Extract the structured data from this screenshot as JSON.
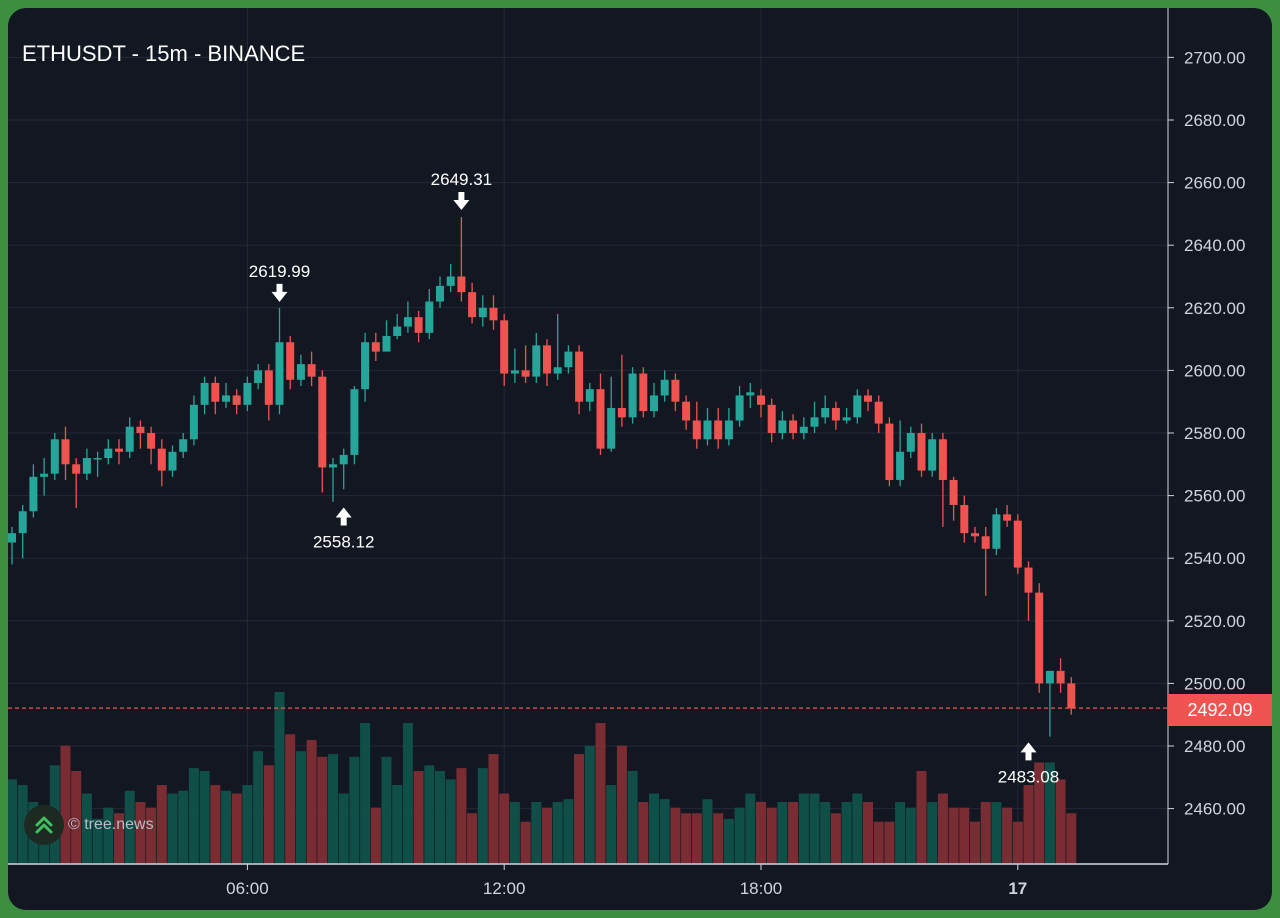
{
  "title": "ETHUSDT - 15m - BINANCE",
  "watermark": "© tree.news",
  "colors": {
    "bg": "#131722",
    "grid": "#232836",
    "up": "#26a69a",
    "down": "#ef5350",
    "up_volume": "#0f4f47",
    "down_volume": "#7a2c33",
    "axis_text": "#d1d4dc",
    "current_price": "#f05350"
  },
  "current_price": "2492.09",
  "chart_data": {
    "type": "candlestick",
    "symbol": "ETHUSDT",
    "interval": "15m",
    "exchange": "BINANCE",
    "y_ticks": [
      "2700.00",
      "2680.00",
      "2660.00",
      "2640.00",
      "2620.00",
      "2600.00",
      "2580.00",
      "2560.00",
      "2540.00",
      "2520.00",
      "2500.00",
      "2480.00",
      "2460.00"
    ],
    "ylim": [
      2440,
      2710
    ],
    "x_ticks": [
      {
        "label": "06:00",
        "index": 22,
        "bold": false
      },
      {
        "label": "12:00",
        "index": 46,
        "bold": false
      },
      {
        "label": "18:00",
        "index": 70,
        "bold": false
      },
      {
        "label": "17",
        "index": 94,
        "bold": true
      }
    ],
    "annotations": [
      {
        "label": "2619.99",
        "index": 25,
        "price": 2619.99,
        "dir": "down"
      },
      {
        "label": "2558.12",
        "index": 31,
        "price": 2558.12,
        "dir": "up"
      },
      {
        "label": "2649.31",
        "index": 42,
        "price": 2649.31,
        "dir": "down"
      },
      {
        "label": "2483.08",
        "index": 95,
        "price": 2483.08,
        "dir": "up"
      }
    ],
    "candles": [
      [
        2545,
        2548,
        2538,
        2550,
        30
      ],
      [
        2548,
        2555,
        2540,
        2557,
        28
      ],
      [
        2555,
        2566,
        2553,
        2570,
        22
      ],
      [
        2566,
        2567,
        2560,
        2572,
        18
      ],
      [
        2567,
        2578,
        2565,
        2580,
        35
      ],
      [
        2578,
        2570,
        2565,
        2582,
        42
      ],
      [
        2570,
        2567,
        2556,
        2572,
        33
      ],
      [
        2567,
        2572,
        2565,
        2575,
        25
      ],
      [
        2572,
        2572,
        2566,
        2574,
        16
      ],
      [
        2572,
        2575,
        2570,
        2578,
        20
      ],
      [
        2575,
        2574,
        2570,
        2578,
        18
      ],
      [
        2574,
        2582,
        2572,
        2585,
        26
      ],
      [
        2582,
        2580,
        2575,
        2584,
        22
      ],
      [
        2580,
        2575,
        2570,
        2582,
        20
      ],
      [
        2575,
        2568,
        2563,
        2578,
        28
      ],
      [
        2568,
        2574,
        2566,
        2576,
        25
      ],
      [
        2574,
        2578,
        2572,
        2580,
        26
      ],
      [
        2578,
        2589,
        2576,
        2592,
        34
      ],
      [
        2589,
        2596,
        2586,
        2598,
        33
      ],
      [
        2596,
        2590,
        2586,
        2598,
        28
      ],
      [
        2590,
        2592,
        2588,
        2596,
        26
      ],
      [
        2592,
        2589,
        2586,
        2594,
        25
      ],
      [
        2589,
        2596,
        2587,
        2598,
        28
      ],
      [
        2596,
        2600,
        2594,
        2602,
        40
      ],
      [
        2600,
        2589,
        2584,
        2602,
        35
      ],
      [
        2589,
        2609,
        2586,
        2620,
        61
      ],
      [
        2609,
        2597,
        2594,
        2611,
        46
      ],
      [
        2597,
        2602,
        2595,
        2605,
        40
      ],
      [
        2602,
        2598,
        2595,
        2606,
        44
      ],
      [
        2598,
        2569,
        2561,
        2600,
        38
      ],
      [
        2569,
        2570,
        2558,
        2572,
        39
      ],
      [
        2570,
        2573,
        2562,
        2575,
        25
      ],
      [
        2573,
        2594,
        2570,
        2595,
        38
      ],
      [
        2594,
        2609,
        2590,
        2612,
        50
      ],
      [
        2609,
        2606,
        2603,
        2612,
        20
      ],
      [
        2606,
        2611,
        2608,
        2616,
        38
      ],
      [
        2611,
        2614,
        2610,
        2618,
        28
      ],
      [
        2614,
        2617,
        2612,
        2622,
        50
      ],
      [
        2617,
        2612,
        2609,
        2619,
        33
      ],
      [
        2612,
        2622,
        2610,
        2626,
        35
      ],
      [
        2622,
        2627,
        2620,
        2630,
        33
      ],
      [
        2627,
        2630,
        2625,
        2634,
        30
      ],
      [
        2630,
        2625,
        2622,
        2649,
        34
      ],
      [
        2625,
        2617,
        2615,
        2628,
        18
      ],
      [
        2617,
        2620,
        2614,
        2624,
        34
      ],
      [
        2620,
        2616,
        2613,
        2624,
        39
      ],
      [
        2616,
        2599,
        2595,
        2618,
        25
      ],
      [
        2599,
        2600,
        2596,
        2607,
        22
      ],
      [
        2600,
        2598,
        2596,
        2608,
        15
      ],
      [
        2598,
        2608,
        2596,
        2612,
        22
      ],
      [
        2608,
        2599,
        2595,
        2610,
        20
      ],
      [
        2599,
        2601,
        2597,
        2618,
        22
      ],
      [
        2601,
        2606,
        2599,
        2608,
        23
      ],
      [
        2606,
        2590,
        2586,
        2608,
        39
      ],
      [
        2590,
        2594,
        2587,
        2596,
        42
      ],
      [
        2594,
        2575,
        2573,
        2599,
        50
      ],
      [
        2575,
        2588,
        2574,
        2598,
        28
      ],
      [
        2588,
        2585,
        2582,
        2605,
        42
      ],
      [
        2585,
        2599,
        2583,
        2601,
        33
      ],
      [
        2599,
        2587,
        2585,
        2601,
        22
      ],
      [
        2587,
        2592,
        2585,
        2596,
        25
      ],
      [
        2592,
        2597,
        2590,
        2600,
        23
      ],
      [
        2597,
        2590,
        2587,
        2599,
        20
      ],
      [
        2590,
        2584,
        2581,
        2592,
        18
      ],
      [
        2584,
        2578,
        2575,
        2590,
        18
      ],
      [
        2578,
        2584,
        2576,
        2588,
        23
      ],
      [
        2584,
        2578,
        2575,
        2588,
        18
      ],
      [
        2578,
        2584,
        2576,
        2588,
        16
      ],
      [
        2584,
        2592,
        2582,
        2595,
        20
      ],
      [
        2592,
        2593,
        2588,
        2596,
        25
      ],
      [
        2592,
        2589,
        2585,
        2594,
        22
      ],
      [
        2589,
        2580,
        2577,
        2591,
        20
      ],
      [
        2580,
        2584,
        2578,
        2587,
        22
      ],
      [
        2584,
        2580,
        2578,
        2586,
        22
      ],
      [
        2580,
        2582,
        2578,
        2585,
        25
      ],
      [
        2582,
        2585,
        2580,
        2590,
        25
      ],
      [
        2585,
        2588,
        2583,
        2592,
        22
      ],
      [
        2588,
        2584,
        2581,
        2590,
        18
      ],
      [
        2584,
        2585,
        2583,
        2588,
        22
      ],
      [
        2585,
        2592,
        2583,
        2594,
        25
      ],
      [
        2592,
        2590,
        2587,
        2594,
        22
      ],
      [
        2590,
        2583,
        2580,
        2592,
        15
      ],
      [
        2583,
        2565,
        2563,
        2585,
        15
      ],
      [
        2565,
        2574,
        2563,
        2584,
        22
      ],
      [
        2574,
        2580,
        2572,
        2582,
        20
      ],
      [
        2580,
        2568,
        2566,
        2583,
        33
      ],
      [
        2568,
        2578,
        2566,
        2580,
        22
      ],
      [
        2578,
        2565,
        2550,
        2580,
        25
      ],
      [
        2565,
        2557,
        2552,
        2566,
        20
      ],
      [
        2557,
        2548,
        2545,
        2560,
        20
      ],
      [
        2548,
        2547,
        2545,
        2550,
        15
      ],
      [
        2547,
        2543,
        2528,
        2550,
        22
      ],
      [
        2543,
        2554,
        2541,
        2556,
        22
      ],
      [
        2554,
        2552,
        2550,
        2557,
        20
      ],
      [
        2552,
        2537,
        2535,
        2554,
        15
      ],
      [
        2537,
        2529,
        2520,
        2539,
        28
      ],
      [
        2529,
        2500,
        2497,
        2532,
        36
      ],
      [
        2500,
        2504,
        2483,
        2504,
        36
      ],
      [
        2504,
        2500,
        2497,
        2508,
        30
      ],
      [
        2500,
        2492,
        2490,
        2502,
        18
      ]
    ],
    "volume_note": "relative volume units"
  }
}
